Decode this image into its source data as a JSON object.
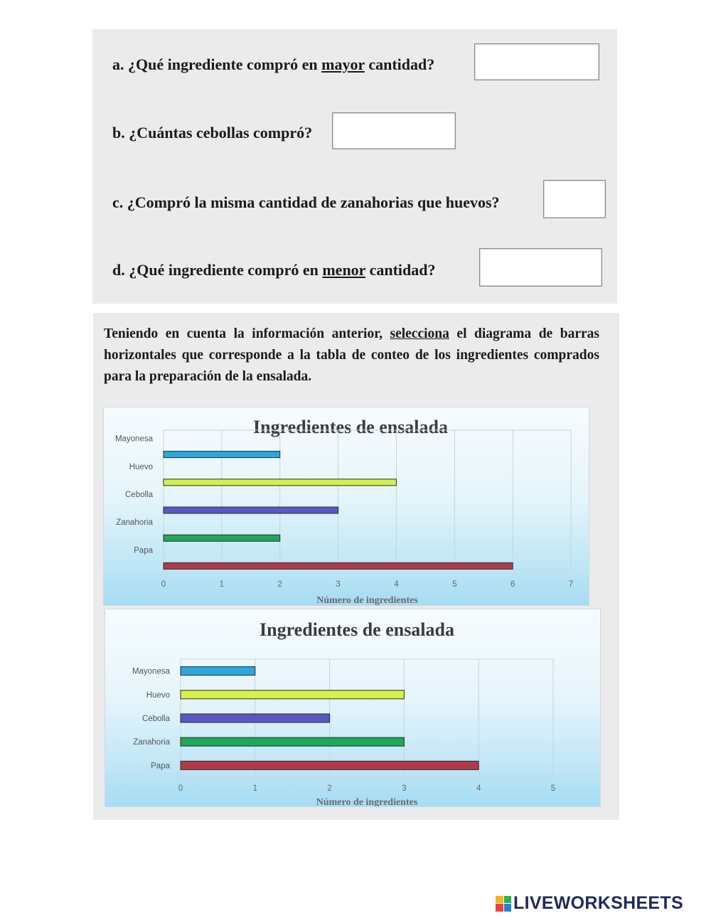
{
  "questions": [
    {
      "pre": "a. ¿Qué ingrediente compró en ",
      "u": "mayor",
      "post": " cantidad?",
      "answer": ""
    },
    {
      "pre": "b. ¿Cuántas cebollas compró?",
      "u": "",
      "post": "",
      "answer": ""
    },
    {
      "pre": "c. ¿Compró la misma cantidad de zanahorias que huevos?",
      "u": "",
      "post": "",
      "answer": ""
    },
    {
      "pre": "d. ¿Qué ingrediente compró en ",
      "u": "menor",
      "post": " cantidad?",
      "answer": ""
    }
  ],
  "instruction": {
    "pre": "Teniendo en cuenta la información anterior, ",
    "u": "selecciona",
    "post": " el diagrama de barras horizontales que corresponde a la tabla de conteo de los ingredientes comprados para la preparación de la ensalada."
  },
  "chart_data": [
    {
      "type": "bar",
      "orientation": "horizontal",
      "title": "Ingredientes de ensalada",
      "xlabel": "Número de ingredientes",
      "ylabel": "",
      "xlim": [
        0,
        7
      ],
      "x_ticks": [
        "0",
        "1",
        "2",
        "3",
        "4",
        "5",
        "6",
        "7"
      ],
      "grid": true,
      "legend": "none",
      "categories": [
        "Mayonesa",
        "Huevo",
        "Cebolla",
        "Zanahoria",
        "Papa"
      ],
      "values": [
        2,
        4,
        3,
        2,
        6
      ],
      "colors": [
        "#2aa7e0",
        "#d4f04a",
        "#5a56c8",
        "#1fa85a",
        "#b03a4a"
      ]
    },
    {
      "type": "bar",
      "orientation": "horizontal",
      "title": "Ingredientes de ensalada",
      "xlabel": "Número de ingredientes",
      "ylabel": "",
      "xlim": [
        0,
        5
      ],
      "x_ticks": [
        "0",
        "1",
        "2",
        "3",
        "4",
        "5"
      ],
      "grid": true,
      "legend": "none",
      "categories": [
        "Mayonesa",
        "Huevo",
        "Cebolla",
        "Zanahoria",
        "Papa"
      ],
      "values": [
        1,
        3,
        2,
        3,
        4
      ],
      "colors": [
        "#2aa7e0",
        "#d4f04a",
        "#5a56c8",
        "#1fa85a",
        "#b03a4a"
      ]
    }
  ],
  "brand": {
    "text": "LIVEWORKSHEETS",
    "logo_colors": [
      "#f2b61f",
      "#2db34a",
      "#e8423b",
      "#2a7fd4"
    ]
  }
}
